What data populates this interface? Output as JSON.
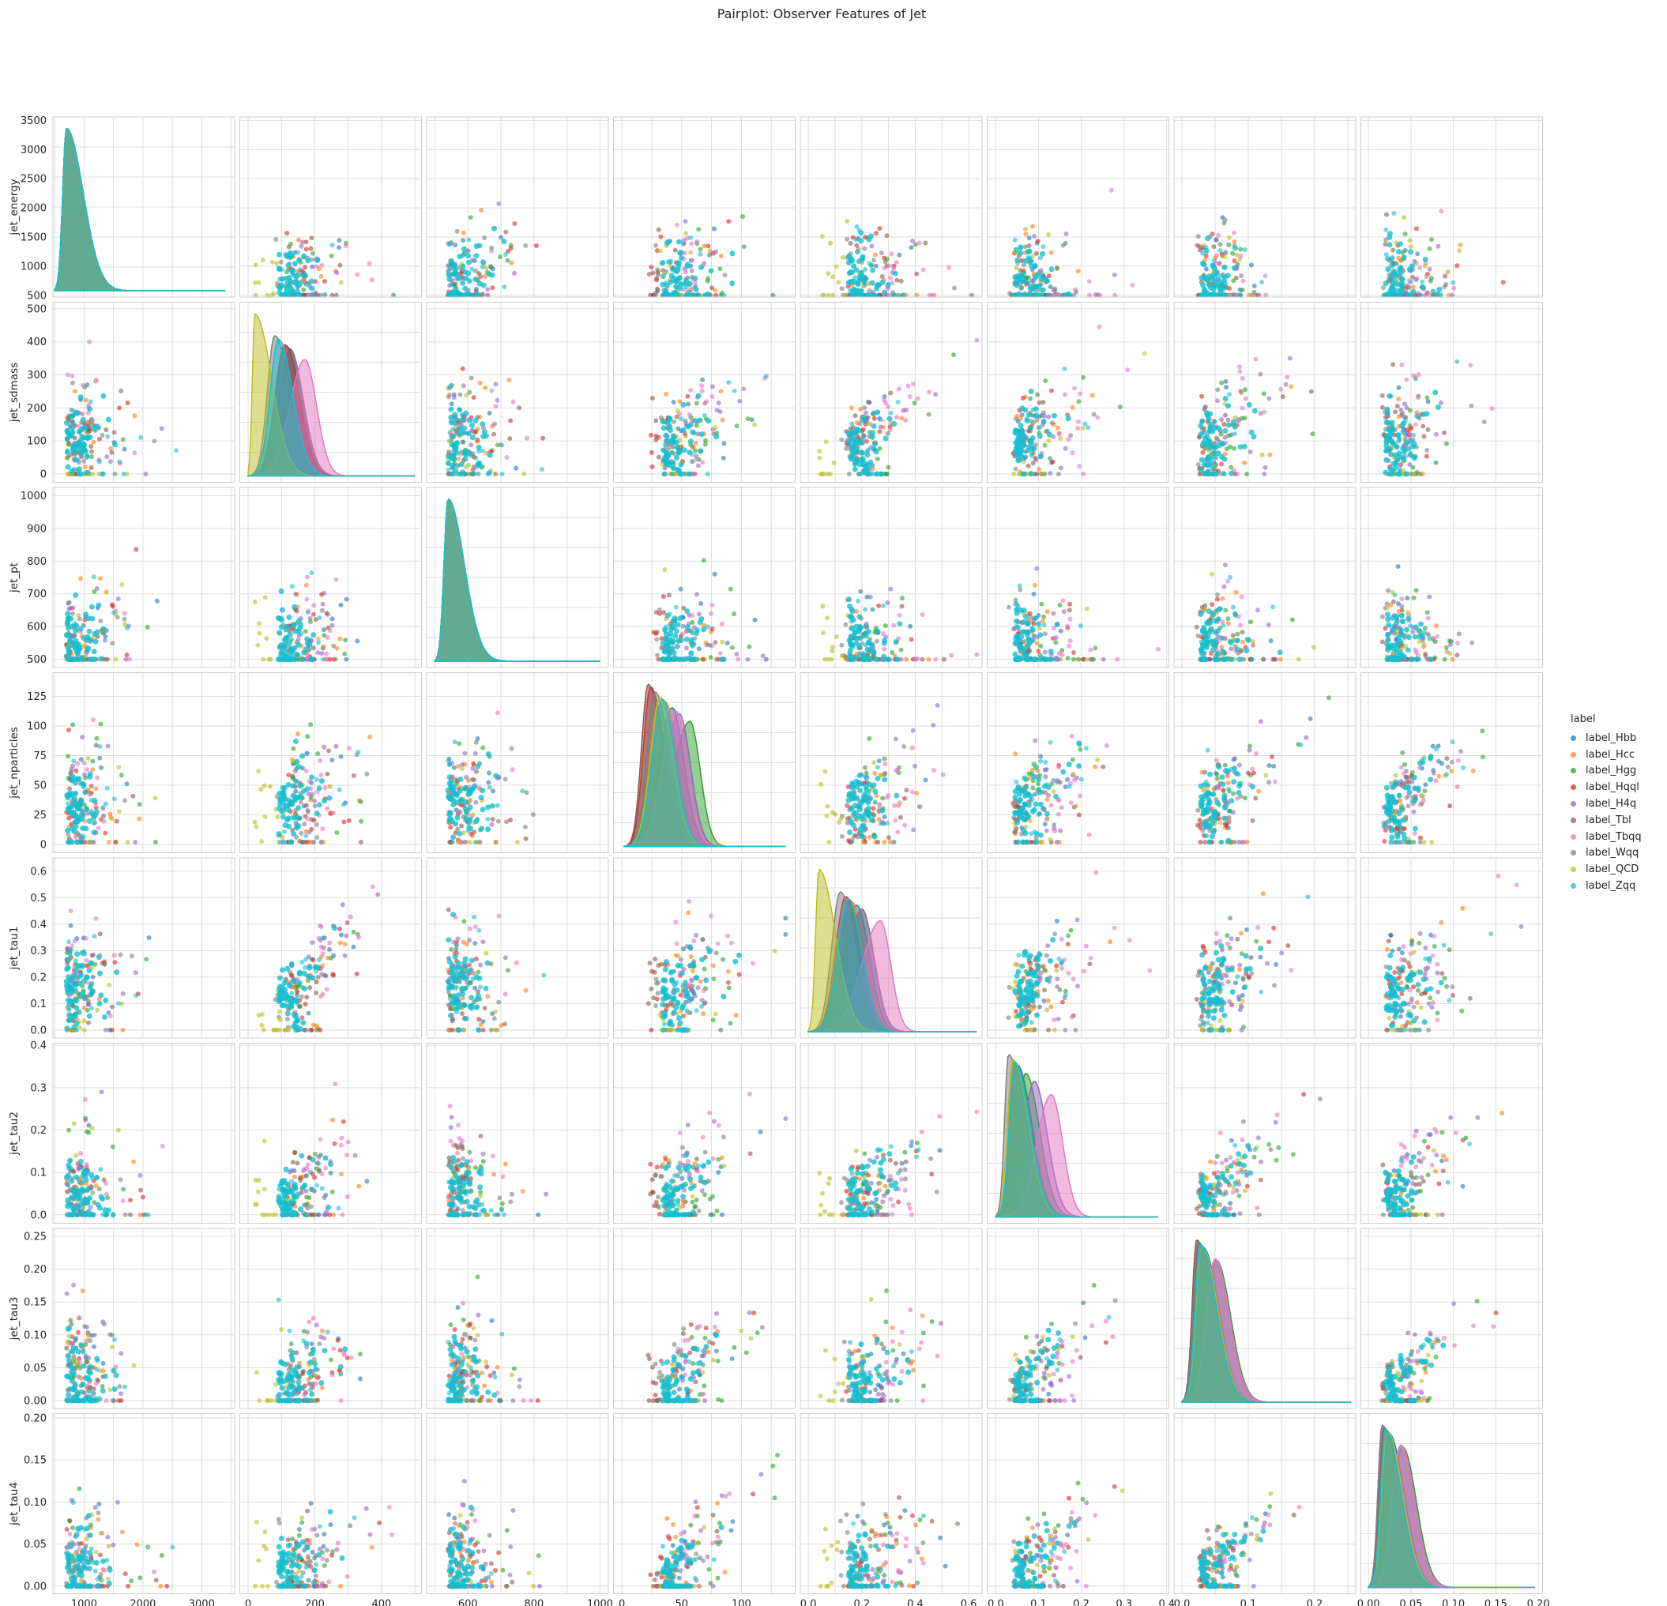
{
  "chart_data": {
    "type": "scatter",
    "title": "Pairplot: Observer Features of Jet",
    "grid": true,
    "legend": {
      "title": "label",
      "placement": "right"
    },
    "variables": [
      {
        "name": "jet_energy",
        "range": [
          470,
          3560
        ],
        "ticks": [
          500,
          1000,
          1500,
          2000,
          2500,
          3000,
          3500
        ],
        "xticks": [
          1000,
          2000,
          3000
        ],
        "xtick_labels": [
          "1000",
          "2000",
          "3000"
        ],
        "ytick_labels": [
          "500",
          "1000",
          "1500",
          "2000",
          "2500",
          "3000",
          "3500"
        ],
        "xlabel_ticks": [
          1000,
          2000,
          3000
        ],
        "data_min": 500,
        "data_max": 3400
      },
      {
        "name": "jet_sdmass",
        "range": [
          -25,
          520
        ],
        "ticks": [
          0,
          100,
          200,
          300,
          400,
          500
        ],
        "xticks": [
          0,
          200,
          400
        ],
        "xtick_labels": [
          "0",
          "200",
          "400"
        ],
        "ytick_labels": [
          "0",
          "100",
          "200",
          "300",
          "400",
          "500"
        ],
        "data_min": 0,
        "data_max": 500
      },
      {
        "name": "jet_pt",
        "range": [
          475,
          1025
        ],
        "ticks": [
          500,
          600,
          700,
          800,
          900,
          1000
        ],
        "xticks": [
          600,
          800,
          1000
        ],
        "xtick_labels": [
          "600",
          "800",
          "1000"
        ],
        "ytick_labels": [
          "500",
          "600",
          "700",
          "800",
          "900",
          "1000"
        ],
        "data_min": 500,
        "data_max": 1000
      },
      {
        "name": "jet_nparticles",
        "range": [
          -7,
          145
        ],
        "ticks": [
          0,
          25,
          50,
          75,
          100,
          125
        ],
        "xticks": [
          0,
          50,
          100
        ],
        "xtick_labels": [
          "0",
          "50",
          "100"
        ],
        "ytick_labels": [
          "0",
          "25",
          "50",
          "75",
          "100",
          "125"
        ],
        "data_min": 2,
        "data_max": 137
      },
      {
        "name": "jet_tau1",
        "range": [
          -0.03,
          0.65
        ],
        "ticks": [
          0.0,
          0.1,
          0.2,
          0.3,
          0.4,
          0.5,
          0.6
        ],
        "xticks": [
          0.0,
          0.2,
          0.4,
          0.6
        ],
        "xtick_labels": [
          "0.0",
          "0.2",
          "0.4",
          "0.6"
        ],
        "ytick_labels": [
          "0.0",
          "0.1",
          "0.2",
          "0.3",
          "0.4",
          "0.5",
          "0.6"
        ],
        "data_min": 0.0,
        "data_max": 0.63
      },
      {
        "name": "jet_tau2",
        "range": [
          -0.02,
          0.405
        ],
        "ticks": [
          0.0,
          0.1,
          0.2,
          0.3,
          0.4
        ],
        "xticks": [
          0.0,
          0.1,
          0.2,
          0.3,
          0.4
        ],
        "xtick_labels": [
          "0.0",
          "0.1",
          "0.2",
          "0.3",
          "0.4"
        ],
        "ytick_labels": [
          "0.0",
          "0.1",
          "0.2",
          "0.3",
          "0.4"
        ],
        "data_min": 0.0,
        "data_max": 0.38
      },
      {
        "name": "jet_tau3",
        "range": [
          -0.012,
          0.262
        ],
        "ticks": [
          0.0,
          0.05,
          0.1,
          0.15,
          0.2,
          0.25
        ],
        "xticks": [
          0.0,
          0.1,
          0.2
        ],
        "xtick_labels": [
          "0.0",
          "0.1",
          "0.2"
        ],
        "ytick_labels": [
          "0.00",
          "0.05",
          "0.10",
          "0.15",
          "0.20",
          "0.25"
        ],
        "data_min": 0.0,
        "data_max": 0.255
      },
      {
        "name": "jet_tau4",
        "range": [
          -0.009,
          0.205
        ],
        "ticks": [
          0.0,
          0.05,
          0.1,
          0.15,
          0.2
        ],
        "xticks": [
          0.0,
          0.05,
          0.1,
          0.15,
          0.2
        ],
        "xtick_labels": [
          "0.00",
          "0.05",
          "0.10",
          "0.15",
          "0.20"
        ],
        "ytick_labels": [
          "0.00",
          "0.05",
          "0.10",
          "0.15",
          "0.20"
        ],
        "data_min": 0.0,
        "data_max": 0.196
      }
    ],
    "series": [
      {
        "name": "label_Hbb",
        "color": "#1f77b4",
        "diag_peak": {
          "jet_energy": 700,
          "jet_sdmass": 125,
          "jet_pt": 540,
          "jet_nparticles": 42,
          "jet_tau1": 0.18,
          "jet_tau2": 0.05,
          "jet_tau3": 0.032,
          "jet_tau4": 0.024
        }
      },
      {
        "name": "label_Hcc",
        "color": "#ff7f0e",
        "diag_peak": {
          "jet_energy": 700,
          "jet_sdmass": 125,
          "jet_pt": 540,
          "jet_nparticles": 36,
          "jet_tau1": 0.16,
          "jet_tau2": 0.045,
          "jet_tau3": 0.03,
          "jet_tau4": 0.022
        }
      },
      {
        "name": "label_Hgg",
        "color": "#2ca02c",
        "diag_peak": {
          "jet_energy": 700,
          "jet_sdmass": 125,
          "jet_pt": 540,
          "jet_nparticles": 57,
          "jet_tau1": 0.2,
          "jet_tau2": 0.07,
          "jet_tau3": 0.052,
          "jet_tau4": 0.04
        }
      },
      {
        "name": "label_Hqql",
        "color": "#d62728",
        "diag_peak": {
          "jet_energy": 700,
          "jet_sdmass": 110,
          "jet_pt": 540,
          "jet_nparticles": 24,
          "jet_tau1": 0.14,
          "jet_tau2": 0.04,
          "jet_tau3": 0.025,
          "jet_tau4": 0.018
        }
      },
      {
        "name": "label_H4q",
        "color": "#9467bd",
        "diag_peak": {
          "jet_energy": 700,
          "jet_sdmass": 125,
          "jet_pt": 540,
          "jet_nparticles": 48,
          "jet_tau1": 0.2,
          "jet_tau2": 0.09,
          "jet_tau3": 0.05,
          "jet_tau4": 0.038
        }
      },
      {
        "name": "label_Tbl",
        "color": "#8c564b",
        "diag_peak": {
          "jet_energy": 700,
          "jet_sdmass": 115,
          "jet_pt": 540,
          "jet_nparticles": 22,
          "jet_tau1": 0.15,
          "jet_tau2": 0.04,
          "jet_tau3": 0.022,
          "jet_tau4": 0.016
        }
      },
      {
        "name": "label_Tbqq",
        "color": "#e377c2",
        "diag_peak": {
          "jet_energy": 700,
          "jet_sdmass": 170,
          "jet_pt": 540,
          "jet_nparticles": 45,
          "jet_tau1": 0.27,
          "jet_tau2": 0.13,
          "jet_tau3": 0.05,
          "jet_tau4": 0.038
        }
      },
      {
        "name": "label_Wqq",
        "color": "#7f7f7f",
        "diag_peak": {
          "jet_energy": 700,
          "jet_sdmass": 80,
          "jet_pt": 540,
          "jet_nparticles": 28,
          "jet_tau1": 0.12,
          "jet_tau2": 0.03,
          "jet_tau3": 0.024,
          "jet_tau4": 0.016
        }
      },
      {
        "name": "label_QCD",
        "color": "#bcbd22",
        "diag_peak": {
          "jet_energy": 700,
          "jet_sdmass": 20,
          "jet_pt": 540,
          "jet_nparticles": 32,
          "jet_tau1": 0.04,
          "jet_tau2": 0.04,
          "jet_tau3": 0.03,
          "jet_tau4": 0.022
        }
      },
      {
        "name": "label_Zqq",
        "color": "#17becf",
        "diag_peak": {
          "jet_energy": 700,
          "jet_sdmass": 91,
          "jet_pt": 540,
          "jet_nparticles": 34,
          "jet_tau1": 0.15,
          "jet_tau2": 0.045,
          "jet_tau3": 0.028,
          "jet_tau4": 0.02
        }
      }
    ]
  }
}
